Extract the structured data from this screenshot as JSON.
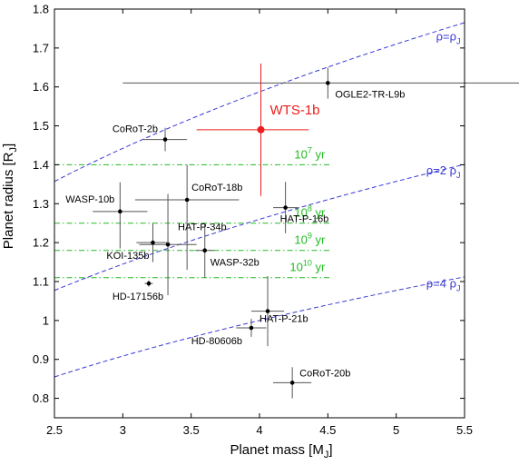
{
  "chart_data": {
    "type": "scatter",
    "xlabel": "Planet mass [M_J]",
    "ylabel": "Planet radius [R_J]",
    "xlim": [
      2.5,
      5.5
    ],
    "ylim": [
      0.75,
      1.8
    ],
    "xticks": [
      2.5,
      3,
      3.5,
      4,
      4.5,
      5,
      5.5
    ],
    "yticks": [
      0.8,
      0.9,
      1.0,
      1.1,
      1.2,
      1.3,
      1.4,
      1.5,
      1.6,
      1.7,
      1.8
    ],
    "xtick_labels": [
      "2.5",
      "3",
      "3.5",
      "4",
      "4.5",
      "5",
      "5.5"
    ],
    "ytick_labels": [
      "0.8",
      "0.9",
      "1",
      "1.1",
      "1.2",
      "1.3",
      "1.4",
      "1.5",
      "1.6",
      "1.7",
      "1.8"
    ],
    "grid": false,
    "colors": {
      "points": "#000000",
      "highlight": "#ee1c1c",
      "density_lines": "#3a3ad6",
      "age_lines": "#22bb22"
    },
    "points": [
      {
        "label": "WTS-1b",
        "x": 4.01,
        "y": 1.49,
        "xerr": [
          0.47,
          0.35
        ],
        "yerr": [
          0.17,
          0.17
        ],
        "highlight": true
      },
      {
        "label": "OGLE2-TR-L9b",
        "x": 4.5,
        "y": 1.61,
        "xerr": [
          1.5,
          1.5
        ],
        "yerr": [
          0.04,
          0.04
        ]
      },
      {
        "label": "CoRoT-2b",
        "x": 3.31,
        "y": 1.465,
        "xerr": [
          0.16,
          0.16
        ],
        "yerr": [
          0.03,
          0.03
        ]
      },
      {
        "label": "CoRoT-18b",
        "x": 3.47,
        "y": 1.31,
        "xerr": [
          0.38,
          0.38
        ],
        "yerr": [
          0.18,
          0.09
        ]
      },
      {
        "label": "WASP-10b",
        "x": 2.98,
        "y": 1.28,
        "xerr": [
          0.2,
          0.2
        ],
        "yerr": [
          0.095,
          0.075
        ]
      },
      {
        "label": "HAT-P-16b",
        "x": 4.19,
        "y": 1.29,
        "xerr": [
          0.09,
          0.09
        ],
        "yerr": [
          0.066,
          0.066
        ]
      },
      {
        "label": "HAT-P-34b",
        "x": 3.33,
        "y": 1.195,
        "xerr": [
          0.21,
          0.21
        ],
        "yerr": [
          0.13,
          0.13
        ]
      },
      {
        "label": "KOI-135b",
        "x": 3.22,
        "y": 1.2,
        "xerr": [
          0.12,
          0.12
        ],
        "yerr": [
          0.05,
          0.05
        ]
      },
      {
        "label": "WASP-32b",
        "x": 3.6,
        "y": 1.18,
        "xerr": [
          0.07,
          0.07
        ],
        "yerr": [
          0.07,
          0.07
        ]
      },
      {
        "label": "HD-17156b",
        "x": 3.19,
        "y": 1.095,
        "xerr": [
          0.03,
          0.03
        ],
        "yerr": [
          0.008,
          0.008
        ]
      },
      {
        "label": "HAT-P-21b",
        "x": 4.06,
        "y": 1.024,
        "xerr": [
          0.12,
          0.12
        ],
        "yerr": [
          0.09,
          0.09
        ]
      },
      {
        "label": "HD-80606b",
        "x": 3.94,
        "y": 0.981,
        "xerr": [
          0.11,
          0.11
        ],
        "yerr": [
          0.023,
          0.023
        ]
      },
      {
        "label": "CoRoT-20b",
        "x": 4.24,
        "y": 0.84,
        "xerr": [
          0.14,
          0.14
        ],
        "yerr": [
          0.04,
          0.04
        ]
      }
    ],
    "density_curves": [
      {
        "label_base": "ρ=ρ",
        "label_sub": "J",
        "factor": 1
      },
      {
        "label_base": "ρ=2 ρ",
        "label_sub": "J",
        "factor": 2
      },
      {
        "label_base": "ρ=4 ρ",
        "label_sub": "J",
        "factor": 4
      }
    ],
    "isochrones": [
      {
        "base": "10",
        "exp": "7",
        "unit": "yr",
        "y": 1.4
      },
      {
        "base": "10",
        "exp": "8",
        "unit": "yr",
        "y": 1.25
      },
      {
        "base": "10",
        "exp": "9",
        "unit": "yr",
        "y": 1.18
      },
      {
        "base": "10",
        "exp": "10",
        "unit": "yr",
        "y": 1.11
      }
    ]
  }
}
